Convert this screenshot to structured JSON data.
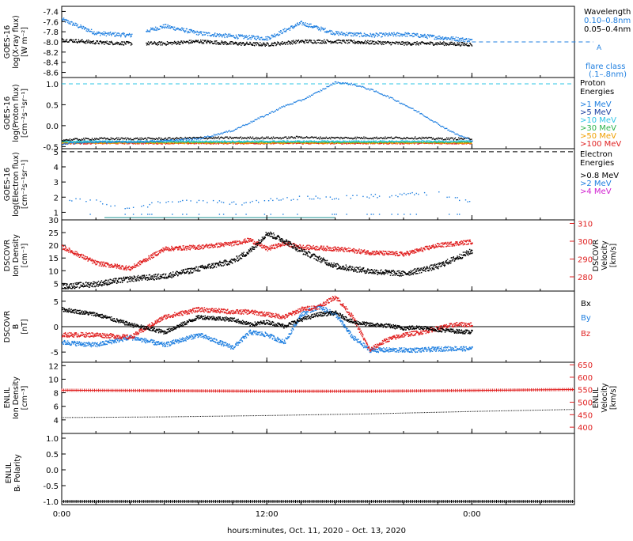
{
  "colors": {
    "black": "#000000",
    "blue": "#1f7fe0",
    "cyan": "#2ec4e6",
    "green": "#2db34a",
    "orange": "#f0a000",
    "red": "#e02020",
    "magenta": "#d020d0",
    "teal": "#1a9090"
  },
  "panels": {
    "xray": {
      "ylabel": [
        "GOES-16",
        "log(X-ray flux)",
        "[W m⁻²]"
      ],
      "ticks": [
        "-7.4",
        "-7.6",
        "-7.8",
        "-8.0",
        "-8.2",
        "-8.4",
        "-8.6"
      ],
      "legend_title": "Wavelength",
      "legend": [
        "0.10–0.8nm",
        "0.05–0.4nm"
      ],
      "flare_level": "A",
      "flare_class_title": "flare class",
      "flare_class_sub": "(.1–.8nm)"
    },
    "proton": {
      "ylabel": [
        "GOES-16",
        "log(Proton flux)",
        "[cm⁻²s⁻¹sr⁻¹]"
      ],
      "ticks": [
        "1.0",
        "0.5",
        "0.0",
        "-0.5"
      ],
      "legend_title": [
        "Proton",
        "Energies"
      ],
      "legend": [
        ">1 MeV",
        ">5 MeV",
        ">10 MeV",
        ">30 MeV",
        ">50 MeV",
        ">100 MeV"
      ]
    },
    "electron": {
      "ylabel": [
        "GOES-16",
        "log(Electron flux)",
        "[cm⁻²s⁻¹sr⁻¹]"
      ],
      "ticks": [
        "5",
        "4",
        "3",
        "2",
        "1"
      ],
      "legend_title": [
        "Electron",
        "Energies"
      ],
      "legend": [
        ">0.8 MeV",
        ">2 MeV",
        ">4 MeV"
      ]
    },
    "dscovr_density": {
      "ylabel_left": [
        "DSCOVR",
        "Ion Density",
        "[cm⁻³]"
      ],
      "ticks_left": [
        "30",
        "25",
        "20",
        "15",
        "10",
        "5"
      ],
      "ylabel_right": [
        "DSCOVR",
        "Velocity",
        "[km/s]"
      ],
      "ticks_right": [
        "310",
        "300",
        "290",
        "280"
      ]
    },
    "dscovr_b": {
      "ylabel": [
        "DSCOVR",
        "B",
        "[nT]"
      ],
      "ticks": [
        "5",
        "0",
        "-5"
      ],
      "legend": [
        "Bx",
        "By",
        "Bz"
      ]
    },
    "enlil_density": {
      "ylabel_left": [
        "ENLIL",
        "Ion Density",
        "[cm⁻³]"
      ],
      "ticks_left": [
        "12",
        "10",
        "8",
        "6",
        "4"
      ],
      "ylabel_right": [
        "ENLIL",
        "Velocity",
        "[km/s]"
      ],
      "ticks_right": [
        "650",
        "600",
        "550",
        "500",
        "450",
        "400"
      ]
    },
    "enlil_polarity": {
      "ylabel": [
        "ENLIL",
        "Bᵣ Polarity"
      ],
      "ticks": [
        "1.0",
        "0.5",
        "0.0",
        "-0.5",
        "-1.0"
      ]
    }
  },
  "xaxis": {
    "ticks": [
      "0:00",
      "12:00",
      "0:00"
    ],
    "label": "hours:minutes, Oct. 11, 2020 – Oct. 13, 2020"
  },
  "chart_data": [
    {
      "type": "scatter",
      "panel": "xray",
      "x_hours": [
        0,
        2,
        4,
        6,
        8,
        10,
        12,
        14,
        16,
        18,
        20,
        22,
        24
      ],
      "series": [
        {
          "name": "0.10–0.8nm",
          "values": [
            -7.55,
            -7.82,
            -7.86,
            -7.68,
            -7.82,
            -7.88,
            -7.92,
            -7.62,
            -7.82,
            -7.86,
            -7.84,
            -7.9,
            -7.96
          ]
        },
        {
          "name": "0.05–0.4nm",
          "values": [
            -7.95,
            -8.0,
            -8.02,
            -8.02,
            -7.98,
            -8.02,
            -8.04,
            -7.98,
            -7.98,
            -8.0,
            -8.02,
            -8.02,
            -8.04
          ]
        }
      ],
      "ylim": [
        -8.7,
        -7.3
      ],
      "annotations": {
        "flare_level_A": -8.0
      }
    },
    {
      "type": "scatter",
      "panel": "proton",
      "x_hours": [
        0,
        2,
        4,
        6,
        8,
        10,
        12,
        13,
        14,
        15,
        16,
        17,
        18,
        19,
        20,
        21,
        22,
        23,
        24
      ],
      "series": [
        {
          "name": ">1 MeV",
          "values": [
            -0.42,
            -0.38,
            -0.38,
            -0.35,
            -0.3,
            -0.1,
            0.28,
            0.48,
            0.62,
            0.82,
            1.05,
            1.0,
            0.88,
            0.72,
            0.52,
            0.3,
            0.05,
            -0.18,
            -0.35
          ]
        },
        {
          "name": ">5 MeV",
          "values": [
            -0.33,
            -0.3,
            -0.3,
            -0.3,
            -0.28,
            -0.28,
            -0.28,
            -0.28,
            -0.26,
            -0.28,
            -0.28,
            -0.28,
            -0.28,
            -0.28,
            -0.28,
            -0.28,
            -0.3,
            -0.3,
            -0.3
          ]
        },
        {
          "name": ">10 MeV",
          "values": [
            -0.36,
            -0.36,
            -0.36,
            -0.36,
            -0.36,
            -0.36,
            -0.36,
            -0.36,
            -0.36,
            -0.36,
            -0.36,
            -0.36,
            -0.36,
            -0.36,
            -0.36,
            -0.36,
            -0.36,
            -0.36,
            -0.36
          ]
        },
        {
          "name": ">30 MeV",
          "values": [
            -0.38,
            -0.38,
            -0.38,
            -0.38,
            -0.38,
            -0.38,
            -0.38,
            -0.38,
            -0.38,
            -0.38,
            -0.38,
            -0.38,
            -0.38,
            -0.38,
            -0.38,
            -0.38,
            -0.38,
            -0.38,
            -0.38
          ]
        },
        {
          "name": ">50 MeV",
          "values": [
            -0.4,
            -0.4,
            -0.4,
            -0.4,
            -0.4,
            -0.4,
            -0.4,
            -0.4,
            -0.4,
            -0.4,
            -0.4,
            -0.4,
            -0.4,
            -0.4,
            -0.4,
            -0.4,
            -0.4,
            -0.4,
            -0.4
          ]
        },
        {
          "name": ">100 MeV",
          "values": [
            -0.41,
            -0.41,
            -0.41,
            -0.41,
            -0.41,
            -0.41,
            -0.41,
            -0.41,
            -0.41,
            -0.41,
            -0.41,
            -0.41,
            -0.41,
            -0.41,
            -0.41,
            -0.41,
            -0.41,
            -0.41,
            -0.41
          ]
        }
      ],
      "ylim": [
        -0.55,
        1.15
      ],
      "annotations": {
        "dashed_threshold": 1.0
      }
    },
    {
      "type": "scatter",
      "panel": "electron",
      "x_hours": [
        0,
        2,
        4,
        6,
        8,
        10,
        12,
        14,
        16,
        18,
        20,
        22,
        24
      ],
      "series": [
        {
          "name": ">0.8 MeV",
          "values": []
        },
        {
          "name": ">2 MeV",
          "values": [
            1.9,
            1.8,
            1.2,
            1.8,
            1.8,
            1.6,
            1.8,
            2.0,
            2.0,
            2.1,
            2.2,
            2.3,
            1.6
          ]
        },
        {
          "name": ">4 MeV",
          "values": []
        }
      ],
      "ylim": [
        0.5,
        5.2
      ],
      "annotations": {
        "dashed_level": 5.0,
        "low_trace": 0.65
      }
    },
    {
      "type": "scatter",
      "panel": "dscovr_density",
      "x_hours": [
        0,
        2,
        4,
        6,
        8,
        10,
        11,
        12,
        13,
        14,
        16,
        18,
        20,
        22,
        24
      ],
      "series": [
        {
          "name": "Ion Density",
          "values": [
            4,
            5,
            7,
            8,
            11,
            14,
            18,
            25,
            22,
            18,
            12,
            10,
            9,
            12,
            18
          ]
        },
        {
          "name": "Velocity",
          "values": [
            297,
            288,
            285,
            296,
            297,
            299,
            301,
            296,
            299,
            297,
            296,
            294,
            293,
            298,
            300
          ]
        }
      ],
      "ylim": [
        2,
        30
      ],
      "ylim_right": [
        272,
        312
      ]
    },
    {
      "type": "scatter",
      "panel": "dscovr_b",
      "x_hours": [
        0,
        2,
        4,
        6,
        8,
        10,
        11,
        12,
        13,
        14,
        15,
        16,
        17,
        18,
        19,
        20,
        21,
        22,
        23,
        24
      ],
      "series": [
        {
          "name": "Bx",
          "values": [
            3.5,
            2.5,
            0.5,
            -1.0,
            2.0,
            1.5,
            0.5,
            1.0,
            0.2,
            1.5,
            2.5,
            2.8,
            1.0,
            0.5,
            0.3,
            -0.2,
            0.0,
            -0.5,
            -0.8,
            -1.0
          ]
        },
        {
          "name": "By",
          "values": [
            -3.0,
            -3.5,
            -2.0,
            -3.5,
            -1.5,
            -4.0,
            -1.0,
            -1.5,
            -3.0,
            2.5,
            4.0,
            2.5,
            -2.0,
            -4.5,
            -4.5,
            -4.5,
            -4.5,
            -4.3,
            -4.2,
            -4.3
          ]
        },
        {
          "name": "Bz",
          "values": [
            -1.5,
            -1.5,
            -2.0,
            2.0,
            3.5,
            3.0,
            3.0,
            2.5,
            2.0,
            3.5,
            4.0,
            6.0,
            2.0,
            -4.5,
            -2.5,
            -1.5,
            -1.0,
            -0.2,
            0.5,
            0.5
          ]
        }
      ],
      "ylim": [
        -7,
        7
      ]
    },
    {
      "type": "line",
      "panel": "enlil_density",
      "x_hours": [
        0,
        6,
        12,
        18,
        24,
        30
      ],
      "series": [
        {
          "name": "Ion Density",
          "values": [
            4.4,
            4.5,
            4.7,
            4.95,
            5.3,
            5.6
          ]
        },
        {
          "name": "Velocity",
          "values": [
            548,
            546,
            544,
            544,
            547,
            551
          ]
        }
      ],
      "ylim": [
        2,
        12.5
      ],
      "ylim_right": [
        375,
        660
      ]
    },
    {
      "type": "line",
      "panel": "enlil_polarity",
      "x_hours": [
        0,
        30
      ],
      "series": [
        {
          "name": "Bᵣ Polarity",
          "values": [
            -1.0,
            -1.0
          ]
        }
      ],
      "ylim": [
        -1.1,
        1.15
      ]
    }
  ]
}
